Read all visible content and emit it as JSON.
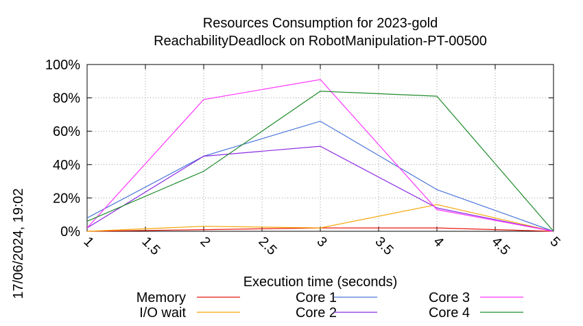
{
  "chart_data": {
    "type": "line",
    "title_line1": "Resources Consumption for 2023-gold",
    "title_line2": "ReachabilityDeadlock on RobotManipulation-PT-00500",
    "xlabel": "Execution time (seconds)",
    "ylabel": "",
    "side_label": "17/06/2024, 19:02",
    "xlim": [
      1,
      5
    ],
    "ylim": [
      0,
      100
    ],
    "x_ticks": [
      1,
      1.5,
      2,
      2.5,
      3,
      3.5,
      4,
      4.5,
      5
    ],
    "x_tick_labels": [
      "1",
      "1.5",
      "2",
      "2.5",
      "3",
      "3.5",
      "4",
      "4.5",
      "5"
    ],
    "y_ticks": [
      0,
      20,
      40,
      60,
      80,
      100
    ],
    "y_tick_labels": [
      "0%",
      "20%",
      "40%",
      "60%",
      "80%",
      "100%"
    ],
    "grid": true,
    "legend_position": "bottom",
    "x": [
      1,
      2,
      3,
      4,
      5
    ],
    "series": [
      {
        "name": "Memory",
        "color": "#e8170e",
        "values": [
          0,
          1,
          2,
          2,
          0
        ]
      },
      {
        "name": "I/O wait",
        "color": "#f5a300",
        "values": [
          0,
          3,
          2,
          16,
          0
        ]
      },
      {
        "name": "Core 1",
        "color": "#4a74d9",
        "values": [
          8,
          45,
          66,
          25,
          0
        ]
      },
      {
        "name": "Core 2",
        "color": "#8a2be2",
        "values": [
          2,
          45,
          51,
          14,
          0
        ]
      },
      {
        "name": "Core 3",
        "color": "#ff33ff",
        "values": [
          2,
          79,
          91,
          13,
          0
        ]
      },
      {
        "name": "Core 4",
        "color": "#1d8a2a",
        "values": [
          6,
          36,
          84,
          81,
          0
        ]
      }
    ]
  }
}
